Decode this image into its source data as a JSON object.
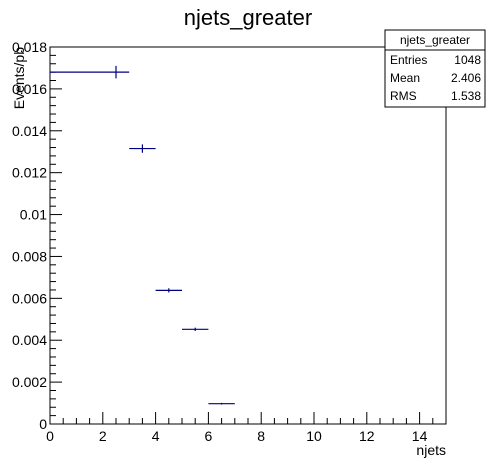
{
  "chart_data": {
    "type": "scatter",
    "title": "njets_greater",
    "xlabel": "njets",
    "ylabel": "Events/pb",
    "xlim": [
      0,
      15
    ],
    "ylim": [
      0,
      0.018
    ],
    "grid": false,
    "x_ticks": [
      "0",
      "2",
      "4",
      "6",
      "8",
      "10",
      "12",
      "14"
    ],
    "y_ticks": [
      "0",
      "0.002",
      "0.004",
      "0.006",
      "0.008",
      "0.01",
      "0.012",
      "0.014",
      "0.016",
      "0.018"
    ],
    "series": [
      {
        "color": "#000080",
        "points": [
          {
            "x_low": 0,
            "x_high": 3,
            "x": 2.5,
            "y": 0.0168,
            "y_err": 0.0003
          },
          {
            "x_low": 3,
            "x_high": 4,
            "x": 3.5,
            "y": 0.01315,
            "y_err": 0.0002
          },
          {
            "x_low": 4,
            "x_high": 5,
            "x": 4.5,
            "y": 0.00638,
            "y_err": 0.0001
          },
          {
            "x_low": 5,
            "x_high": 6,
            "x": 5.5,
            "y": 0.00452,
            "y_err": 8e-05
          },
          {
            "x_low": 6,
            "x_high": 7,
            "x": 6.5,
            "y": 0.00097,
            "y_err": 4e-05
          }
        ]
      }
    ],
    "stats_box": {
      "name": "njets_greater",
      "rows": [
        {
          "label": "Entries",
          "value": "1048"
        },
        {
          "label": "Mean",
          "value": "2.406"
        },
        {
          "label": "RMS",
          "value": "1.538"
        }
      ],
      "placement": "top-right"
    }
  }
}
